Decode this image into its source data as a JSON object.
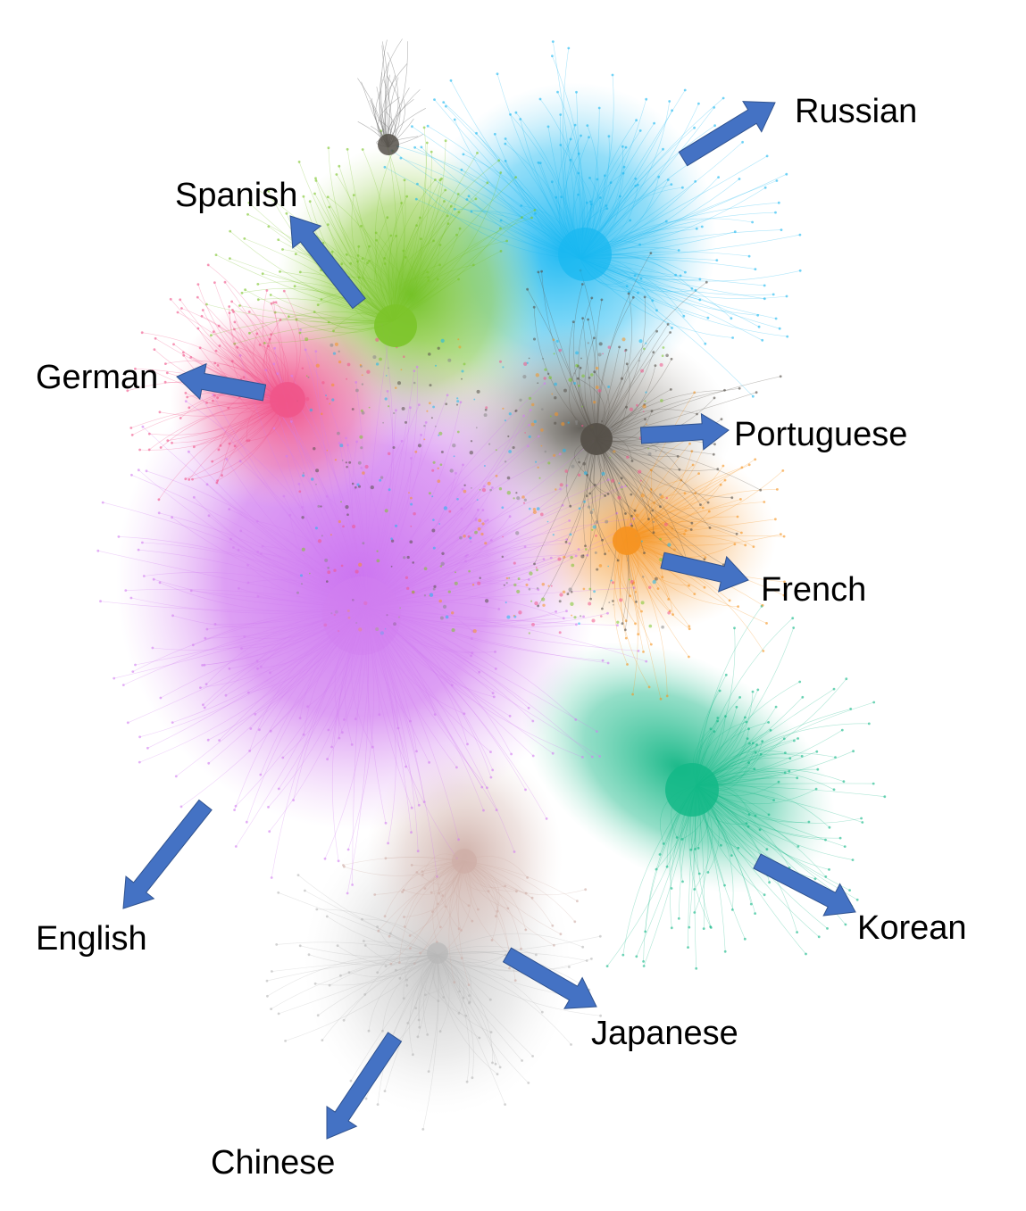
{
  "languages": [
    {
      "name": "Russian",
      "color": "#1ab8f0"
    },
    {
      "name": "Spanish",
      "color": "#7cc42a"
    },
    {
      "name": "German",
      "color": "#f0558a"
    },
    {
      "name": "Portuguese",
      "color": "#555049"
    },
    {
      "name": "French",
      "color": "#f59422"
    },
    {
      "name": "Korean",
      "color": "#13b887"
    },
    {
      "name": "English",
      "color": "#d27ff0"
    },
    {
      "name": "Japanese",
      "color": "#cfaea6"
    },
    {
      "name": "Chinese",
      "color": "#b8b8b8"
    }
  ],
  "arrow_color": "#4472c4"
}
